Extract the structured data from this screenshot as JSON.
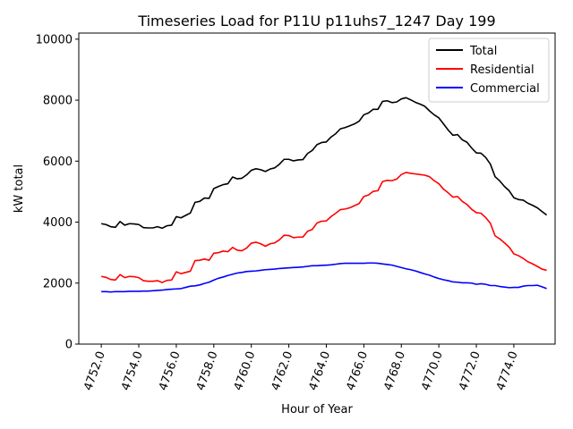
{
  "chart_data": {
    "type": "line",
    "title": "Timeseries Load for P11U p11uhs7_1247  Day 199",
    "xlabel": "Hour of Year",
    "ylabel": "kW total",
    "xlim": [
      4750.8,
      4776.2
    ],
    "ylim": [
      0,
      10200
    ],
    "x_ticks": [
      4752,
      4754,
      4756,
      4758,
      4760,
      4762,
      4764,
      4766,
      4768,
      4770,
      4772,
      4774
    ],
    "x_tick_labels": [
      "4752.0",
      "4754.0",
      "4756.0",
      "4758.0",
      "4760.0",
      "4762.0",
      "4764.0",
      "4766.0",
      "4768.0",
      "4770.0",
      "4772.0",
      "4774.0"
    ],
    "y_ticks": [
      0,
      2000,
      4000,
      6000,
      8000,
      10000
    ],
    "y_tick_labels": [
      "0",
      "2000",
      "4000",
      "6000",
      "8000",
      "10000"
    ],
    "legend_position": "top-right",
    "x_start": 4752,
    "x_step": 0.25,
    "series": [
      {
        "name": "Total",
        "color": "#000000",
        "values": [
          3950,
          3920,
          3850,
          3830,
          4020,
          3900,
          3950,
          3940,
          3920,
          3820,
          3810,
          3810,
          3850,
          3800,
          3880,
          3900,
          4180,
          4140,
          4220,
          4300,
          4650,
          4680,
          4790,
          4780,
          5100,
          5170,
          5230,
          5260,
          5480,
          5420,
          5440,
          5550,
          5700,
          5750,
          5720,
          5660,
          5740,
          5780,
          5900,
          6060,
          6060,
          6010,
          6040,
          6050,
          6250,
          6350,
          6540,
          6610,
          6630,
          6790,
          6900,
          7060,
          7100,
          7160,
          7220,
          7310,
          7520,
          7580,
          7700,
          7700,
          7960,
          7980,
          7920,
          7940,
          8040,
          8080,
          8010,
          7930,
          7870,
          7800,
          7650,
          7520,
          7420,
          7220,
          7020,
          6850,
          6870,
          6700,
          6620,
          6430,
          6270,
          6260,
          6120,
          5900,
          5490,
          5350,
          5170,
          5030,
          4800,
          4740,
          4720,
          4620,
          4550,
          4470,
          4350,
          4230
        ]
      },
      {
        "name": "Residential",
        "color": "#ff0000",
        "values": [
          2220,
          2190,
          2120,
          2100,
          2280,
          2180,
          2220,
          2210,
          2180,
          2080,
          2060,
          2060,
          2080,
          2020,
          2090,
          2100,
          2370,
          2310,
          2350,
          2390,
          2740,
          2750,
          2790,
          2750,
          2980,
          3000,
          3050,
          3030,
          3170,
          3080,
          3060,
          3150,
          3310,
          3340,
          3290,
          3210,
          3290,
          3320,
          3420,
          3570,
          3560,
          3490,
          3510,
          3510,
          3700,
          3760,
          3970,
          4030,
          4040,
          4180,
          4290,
          4410,
          4430,
          4470,
          4540,
          4610,
          4840,
          4890,
          5010,
          5030,
          5330,
          5370,
          5360,
          5410,
          5560,
          5630,
          5600,
          5580,
          5560,
          5540,
          5490,
          5360,
          5260,
          5080,
          4960,
          4820,
          4840,
          4680,
          4580,
          4420,
          4310,
          4290,
          4150,
          3960,
          3550,
          3450,
          3320,
          3180,
          2960,
          2900,
          2810,
          2700,
          2630,
          2550,
          2460,
          2420
        ]
      },
      {
        "name": "Commercial",
        "color": "#0000ff",
        "values": [
          1720,
          1720,
          1710,
          1720,
          1720,
          1720,
          1730,
          1730,
          1730,
          1740,
          1740,
          1750,
          1760,
          1770,
          1790,
          1800,
          1810,
          1820,
          1860,
          1900,
          1910,
          1940,
          1990,
          2030,
          2100,
          2160,
          2200,
          2250,
          2290,
          2330,
          2350,
          2380,
          2390,
          2400,
          2420,
          2440,
          2450,
          2460,
          2480,
          2490,
          2500,
          2510,
          2520,
          2530,
          2550,
          2570,
          2570,
          2580,
          2590,
          2600,
          2620,
          2640,
          2650,
          2650,
          2650,
          2650,
          2650,
          2660,
          2660,
          2650,
          2630,
          2610,
          2590,
          2550,
          2510,
          2470,
          2440,
          2400,
          2350,
          2300,
          2260,
          2200,
          2150,
          2110,
          2080,
          2040,
          2030,
          2010,
          2010,
          2000,
          1960,
          1980,
          1960,
          1920,
          1920,
          1890,
          1870,
          1850,
          1860,
          1860,
          1900,
          1920,
          1920,
          1930,
          1880,
          1820
        ]
      }
    ]
  }
}
